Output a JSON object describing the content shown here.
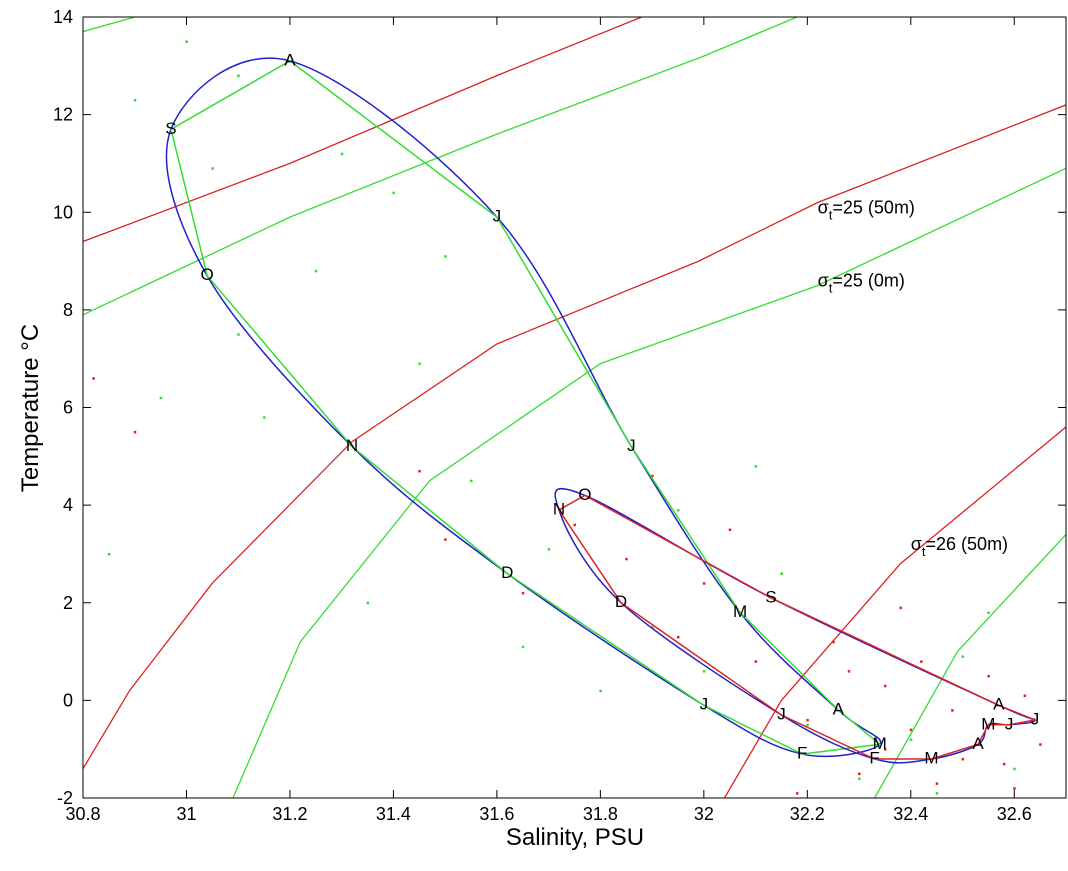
{
  "chart_data": {
    "type": "ts-diagram",
    "xlabel": "Salinity, PSU",
    "ylabel": "Temperature °C",
    "xlim": [
      30.8,
      32.7
    ],
    "ylim": [
      -2,
      14
    ],
    "xticks": [
      30.8,
      31,
      31.2,
      31.4,
      31.6,
      31.8,
      32,
      32.2,
      32.4,
      32.6
    ],
    "yticks": [
      -2,
      0,
      2,
      4,
      6,
      8,
      10,
      12,
      14
    ],
    "series": [
      {
        "color": "#33dd33",
        "fit_color": "#2020cc",
        "labels": [
          "J",
          "F",
          "M",
          "A",
          "M",
          "J",
          "J",
          "A",
          "S",
          "O",
          "N",
          "D"
        ],
        "x": [
          32.0,
          32.19,
          32.34,
          32.26,
          32.07,
          31.86,
          31.6,
          31.2,
          30.97,
          31.04,
          31.32,
          31.62
        ],
        "y": [
          -0.1,
          -1.1,
          -0.9,
          -0.2,
          1.8,
          5.2,
          9.9,
          13.1,
          11.7,
          8.7,
          5.2,
          2.6
        ]
      },
      {
        "color": "#dd2222",
        "fit_color": "#2020cc",
        "labels": [
          "J",
          "F",
          "M",
          "A",
          "M",
          "J",
          "J",
          "A",
          "S",
          "O",
          "N",
          "D"
        ],
        "x": [
          32.15,
          32.33,
          32.44,
          32.53,
          32.55,
          32.59,
          32.64,
          32.57,
          32.13,
          31.77,
          31.72,
          31.84
        ],
        "y": [
          -0.3,
          -1.2,
          -1.2,
          -0.9,
          -0.5,
          -0.5,
          -0.4,
          -0.1,
          2.1,
          4.2,
          3.9,
          2.0
        ]
      }
    ],
    "isopycnals": [
      {
        "color": "#dd2222",
        "x": [
          30.8,
          31.2,
          31.6,
          31.88
        ],
        "y": [
          9.4,
          11.0,
          12.8,
          14
        ]
      },
      {
        "color": "#33dd33",
        "x": [
          30.8,
          31.2,
          31.6,
          32.0,
          32.18
        ],
        "y": [
          7.9,
          9.9,
          11.6,
          13.2,
          14
        ]
      },
      {
        "color": "#33dd33",
        "x": [
          30.8,
          30.9
        ],
        "y": [
          13.7,
          14
        ]
      },
      {
        "color": "#dd2222",
        "x": [
          30.8,
          30.89,
          31.05,
          31.32,
          31.6,
          31.99,
          32.22,
          32.7
        ],
        "y": [
          -1.4,
          0.2,
          2.4,
          5.3,
          7.3,
          9.0,
          10.2,
          12.2
        ]
      },
      {
        "color": "#33dd33",
        "x": [
          31.09,
          31.22,
          31.47,
          31.8,
          32.22,
          32.7
        ],
        "y": [
          -2,
          1.2,
          4.5,
          6.9,
          8.5,
          10.9
        ]
      },
      {
        "color": "#dd2222",
        "x": [
          32.04,
          32.15,
          32.38,
          32.7
        ],
        "y": [
          -2,
          0,
          2.8,
          5.6
        ]
      },
      {
        "color": "#33dd33",
        "x": [
          32.33,
          32.49,
          32.7
        ],
        "y": [
          -2,
          1.0,
          3.4
        ]
      }
    ],
    "annotations": [
      {
        "symbol": "σ",
        "sub": "t",
        "text": "=25 (50m)",
        "x": 32.22,
        "y": 10.1
      },
      {
        "symbol": "σ",
        "sub": "t",
        "text": "=25 (0m)",
        "x": 32.22,
        "y": 8.6
      },
      {
        "symbol": "σ",
        "sub": "t",
        "text": "=26 (50m)",
        "x": 32.4,
        "y": 3.2
      }
    ],
    "scatter": [
      {
        "color": "#33dd33",
        "x": [
          30.9,
          31.0,
          31.1,
          31.3,
          31.4,
          31.5,
          31.1,
          30.95,
          31.25,
          31.45,
          31.55,
          31.7,
          31.9,
          32.0,
          32.1,
          32.2,
          32.3,
          32.4,
          32.5,
          32.6,
          31.35,
          31.15,
          30.85,
          31.05,
          31.65,
          31.95,
          32.15,
          32.45,
          32.55,
          31.8
        ],
        "y": [
          12.3,
          13.5,
          12.8,
          11.2,
          10.4,
          9.1,
          7.5,
          6.2,
          8.8,
          6.9,
          4.5,
          3.1,
          1.5,
          0.6,
          4.8,
          -0.5,
          -1.6,
          -0.8,
          0.9,
          -1.4,
          2.0,
          5.8,
          3.0,
          10.9,
          1.1,
          3.9,
          2.6,
          -1.9,
          1.8,
          0.2
        ]
      },
      {
        "color": "#dd2222",
        "x": [
          30.82,
          30.9,
          31.45,
          31.5,
          31.65,
          31.75,
          31.85,
          31.95,
          32.05,
          32.1,
          32.2,
          32.25,
          32.3,
          32.35,
          32.4,
          32.45,
          32.5,
          32.55,
          32.6,
          32.65,
          32.35,
          32.42,
          32.48,
          32.58,
          32.62,
          32.28,
          32.18,
          31.9,
          32.0,
          32.38
        ],
        "y": [
          6.6,
          5.5,
          4.7,
          3.3,
          2.2,
          3.6,
          2.9,
          1.3,
          3.5,
          0.8,
          -0.4,
          1.2,
          -1.5,
          0.3,
          -0.6,
          -1.7,
          -1.2,
          0.5,
          -1.8,
          -0.9,
          -1.0,
          0.8,
          -0.2,
          -1.3,
          0.1,
          0.6,
          -1.9,
          4.6,
          2.4,
          1.9
        ]
      }
    ]
  }
}
